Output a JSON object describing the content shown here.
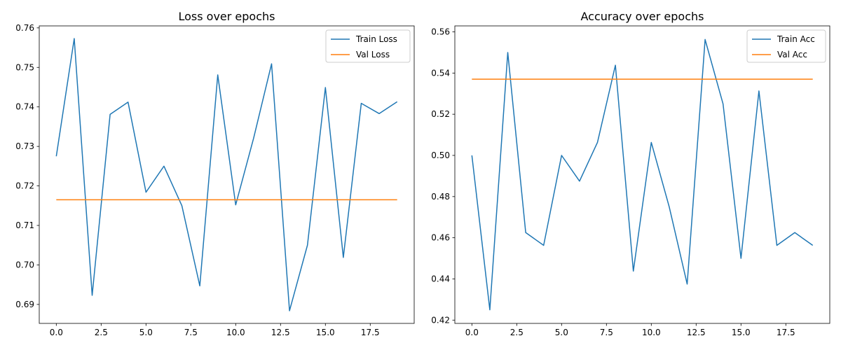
{
  "chart_data": [
    {
      "type": "line",
      "title": "Loss over epochs",
      "xlabel": "",
      "ylabel": "",
      "xlim": [
        -0.95,
        19.95
      ],
      "ylim": [
        0.6852,
        0.7605
      ],
      "xticks": [
        0.0,
        2.5,
        5.0,
        7.5,
        10.0,
        12.5,
        15.0,
        17.5
      ],
      "xtick_labels": [
        "0.0",
        "2.5",
        "5.0",
        "7.5",
        "10.0",
        "12.5",
        "15.0",
        "17.5"
      ],
      "yticks": [
        0.69,
        0.7,
        0.71,
        0.72,
        0.73,
        0.74,
        0.75,
        0.76
      ],
      "ytick_labels": [
        "0.69",
        "0.70",
        "0.71",
        "0.72",
        "0.73",
        "0.74",
        "0.75",
        "0.76"
      ],
      "grid": false,
      "legend": "upper right",
      "x": [
        0,
        1,
        2,
        3,
        4,
        5,
        6,
        7,
        8,
        9,
        10,
        11,
        12,
        13,
        14,
        15,
        16,
        17,
        18,
        19
      ],
      "series": [
        {
          "name": "Train Loss",
          "color": "#1f77b4",
          "values": [
            0.7275,
            0.7573,
            0.6923,
            0.7381,
            0.7412,
            0.7184,
            0.725,
            0.715,
            0.6947,
            0.7481,
            0.7152,
            0.7321,
            0.7509,
            0.6884,
            0.705,
            0.7449,
            0.7019,
            0.7409,
            0.7383,
            0.7413
          ]
        },
        {
          "name": "Val Loss",
          "color": "#ff7f0e",
          "values": [
            0.7165,
            0.7165,
            0.7165,
            0.7165,
            0.7165,
            0.7165,
            0.7165,
            0.7165,
            0.7165,
            0.7165,
            0.7165,
            0.7165,
            0.7165,
            0.7165,
            0.7165,
            0.7165,
            0.7165,
            0.7165,
            0.7165,
            0.7165
          ]
        }
      ]
    },
    {
      "type": "line",
      "title": "Accuracy over epochs",
      "xlabel": "",
      "ylabel": "",
      "xlim": [
        -0.95,
        19.95
      ],
      "ylim": [
        0.4184,
        0.5629
      ],
      "xticks": [
        0.0,
        2.5,
        5.0,
        7.5,
        10.0,
        12.5,
        15.0,
        17.5
      ],
      "xtick_labels": [
        "0.0",
        "2.5",
        "5.0",
        "7.5",
        "10.0",
        "12.5",
        "15.0",
        "17.5"
      ],
      "yticks": [
        0.42,
        0.44,
        0.46,
        0.48,
        0.5,
        0.52,
        0.54,
        0.56
      ],
      "ytick_labels": [
        "0.42",
        "0.44",
        "0.46",
        "0.48",
        "0.50",
        "0.52",
        "0.54",
        "0.56"
      ],
      "grid": false,
      "legend": "upper right",
      "x": [
        0,
        1,
        2,
        3,
        4,
        5,
        6,
        7,
        8,
        9,
        10,
        11,
        12,
        13,
        14,
        15,
        16,
        17,
        18,
        19
      ],
      "series": [
        {
          "name": "Train Acc",
          "color": "#1f77b4",
          "values": [
            0.5,
            0.425,
            0.55,
            0.4625,
            0.4563,
            0.5,
            0.4875,
            0.5063,
            0.5438,
            0.4438,
            0.5063,
            0.475,
            0.4375,
            0.5563,
            0.525,
            0.45,
            0.5313,
            0.4563,
            0.4625,
            0.4563
          ]
        },
        {
          "name": "Val Acc",
          "color": "#ff7f0e",
          "values": [
            0.537,
            0.537,
            0.537,
            0.537,
            0.537,
            0.537,
            0.537,
            0.537,
            0.537,
            0.537,
            0.537,
            0.537,
            0.537,
            0.537,
            0.537,
            0.537,
            0.537,
            0.537,
            0.537,
            0.537
          ]
        }
      ]
    }
  ]
}
